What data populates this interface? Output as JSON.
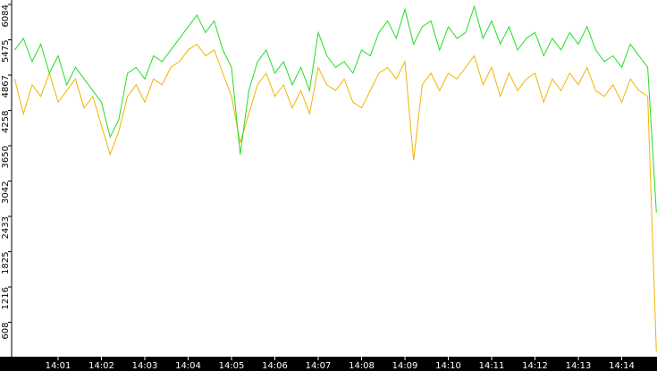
{
  "chart_data": {
    "type": "line",
    "x": [
      0,
      0.2,
      0.4,
      0.6,
      0.8,
      1,
      1.2,
      1.4,
      1.6,
      1.8,
      2,
      2.2,
      2.4,
      2.6,
      2.8,
      3,
      3.2,
      3.4,
      3.6,
      3.8,
      4,
      4.2,
      4.4,
      4.6,
      4.8,
      5,
      5.2,
      5.4,
      5.6,
      5.8,
      6,
      6.2,
      6.4,
      6.6,
      6.8,
      7,
      7.2,
      7.4,
      7.6,
      7.8,
      8,
      8.2,
      8.4,
      8.6,
      8.8,
      9,
      9.2,
      9.4,
      9.6,
      9.8,
      10,
      10.2,
      10.4,
      10.6,
      10.8,
      11,
      11.2,
      11.4,
      11.6,
      11.8,
      12,
      12.2,
      12.4,
      12.6,
      12.8,
      13,
      13.2,
      13.4,
      13.6,
      13.8,
      14,
      14.2,
      14.4,
      14.6,
      14.8
    ],
    "series": [
      {
        "color": "#f0b400",
        "values": [
          4800,
          4200,
          4700,
          4500,
          4900,
          4400,
          4600,
          4800,
          4300,
          4500,
          4000,
          3500,
          3900,
          4500,
          4700,
          4400,
          4800,
          4700,
          5000,
          5100,
          5300,
          5400,
          5200,
          5300,
          4900,
          4500,
          3700,
          4200,
          4700,
          4900,
          4500,
          4700,
          4300,
          4600,
          4200,
          5000,
          4700,
          4600,
          4800,
          4400,
          4300,
          4600,
          4900,
          5000,
          4800,
          5100,
          3400,
          4700,
          4900,
          4600,
          4900,
          4800,
          5000,
          5200,
          4700,
          5000,
          4500,
          4900,
          4600,
          4800,
          4900,
          4400,
          4800,
          4600,
          4900,
          4700,
          5000,
          4600,
          4500,
          4700,
          4400,
          4800,
          4600,
          4500,
          100
        ]
      },
      {
        "color": "#22dd22",
        "values": [
          5300,
          5500,
          5100,
          5400,
          4900,
          5200,
          4700,
          5000,
          4800,
          4600,
          4400,
          3800,
          4100,
          4900,
          5000,
          4800,
          5200,
          5100,
          5300,
          5500,
          5700,
          5900,
          5600,
          5800,
          5300,
          5000,
          3500,
          4600,
          5100,
          5300,
          4900,
          5100,
          4700,
          5000,
          4600,
          5600,
          5200,
          5000,
          5100,
          4900,
          5300,
          5200,
          5600,
          5800,
          5500,
          6000,
          5400,
          5700,
          5800,
          5300,
          5700,
          5500,
          5600,
          6050,
          5500,
          5800,
          5400,
          5700,
          5300,
          5500,
          5600,
          5200,
          5500,
          5300,
          5600,
          5400,
          5700,
          5300,
          5100,
          5200,
          5000,
          5400,
          5200,
          5000,
          2500
        ]
      }
    ],
    "xlim": [
      0,
      14.8
    ],
    "xticks": [
      {
        "value": 1,
        "label": "14:01"
      },
      {
        "value": 2,
        "label": "14:02"
      },
      {
        "value": 3,
        "label": "14:03"
      },
      {
        "value": 4,
        "label": "14:04"
      },
      {
        "value": 5,
        "label": "14:05"
      },
      {
        "value": 6,
        "label": "14:06"
      },
      {
        "value": 7,
        "label": "14:07"
      },
      {
        "value": 8,
        "label": "14:08"
      },
      {
        "value": 9,
        "label": "14:09"
      },
      {
        "value": 10,
        "label": "14:10"
      },
      {
        "value": 11,
        "label": "14:11"
      },
      {
        "value": 12,
        "label": "14:12"
      },
      {
        "value": 13,
        "label": "14:13"
      },
      {
        "value": 14,
        "label": "14:14"
      }
    ],
    "ylim": [
      0,
      6084
    ],
    "yticks": [
      608,
      1216,
      1825,
      2433,
      3042,
      3650,
      4258,
      4867,
      5475,
      6084
    ]
  }
}
